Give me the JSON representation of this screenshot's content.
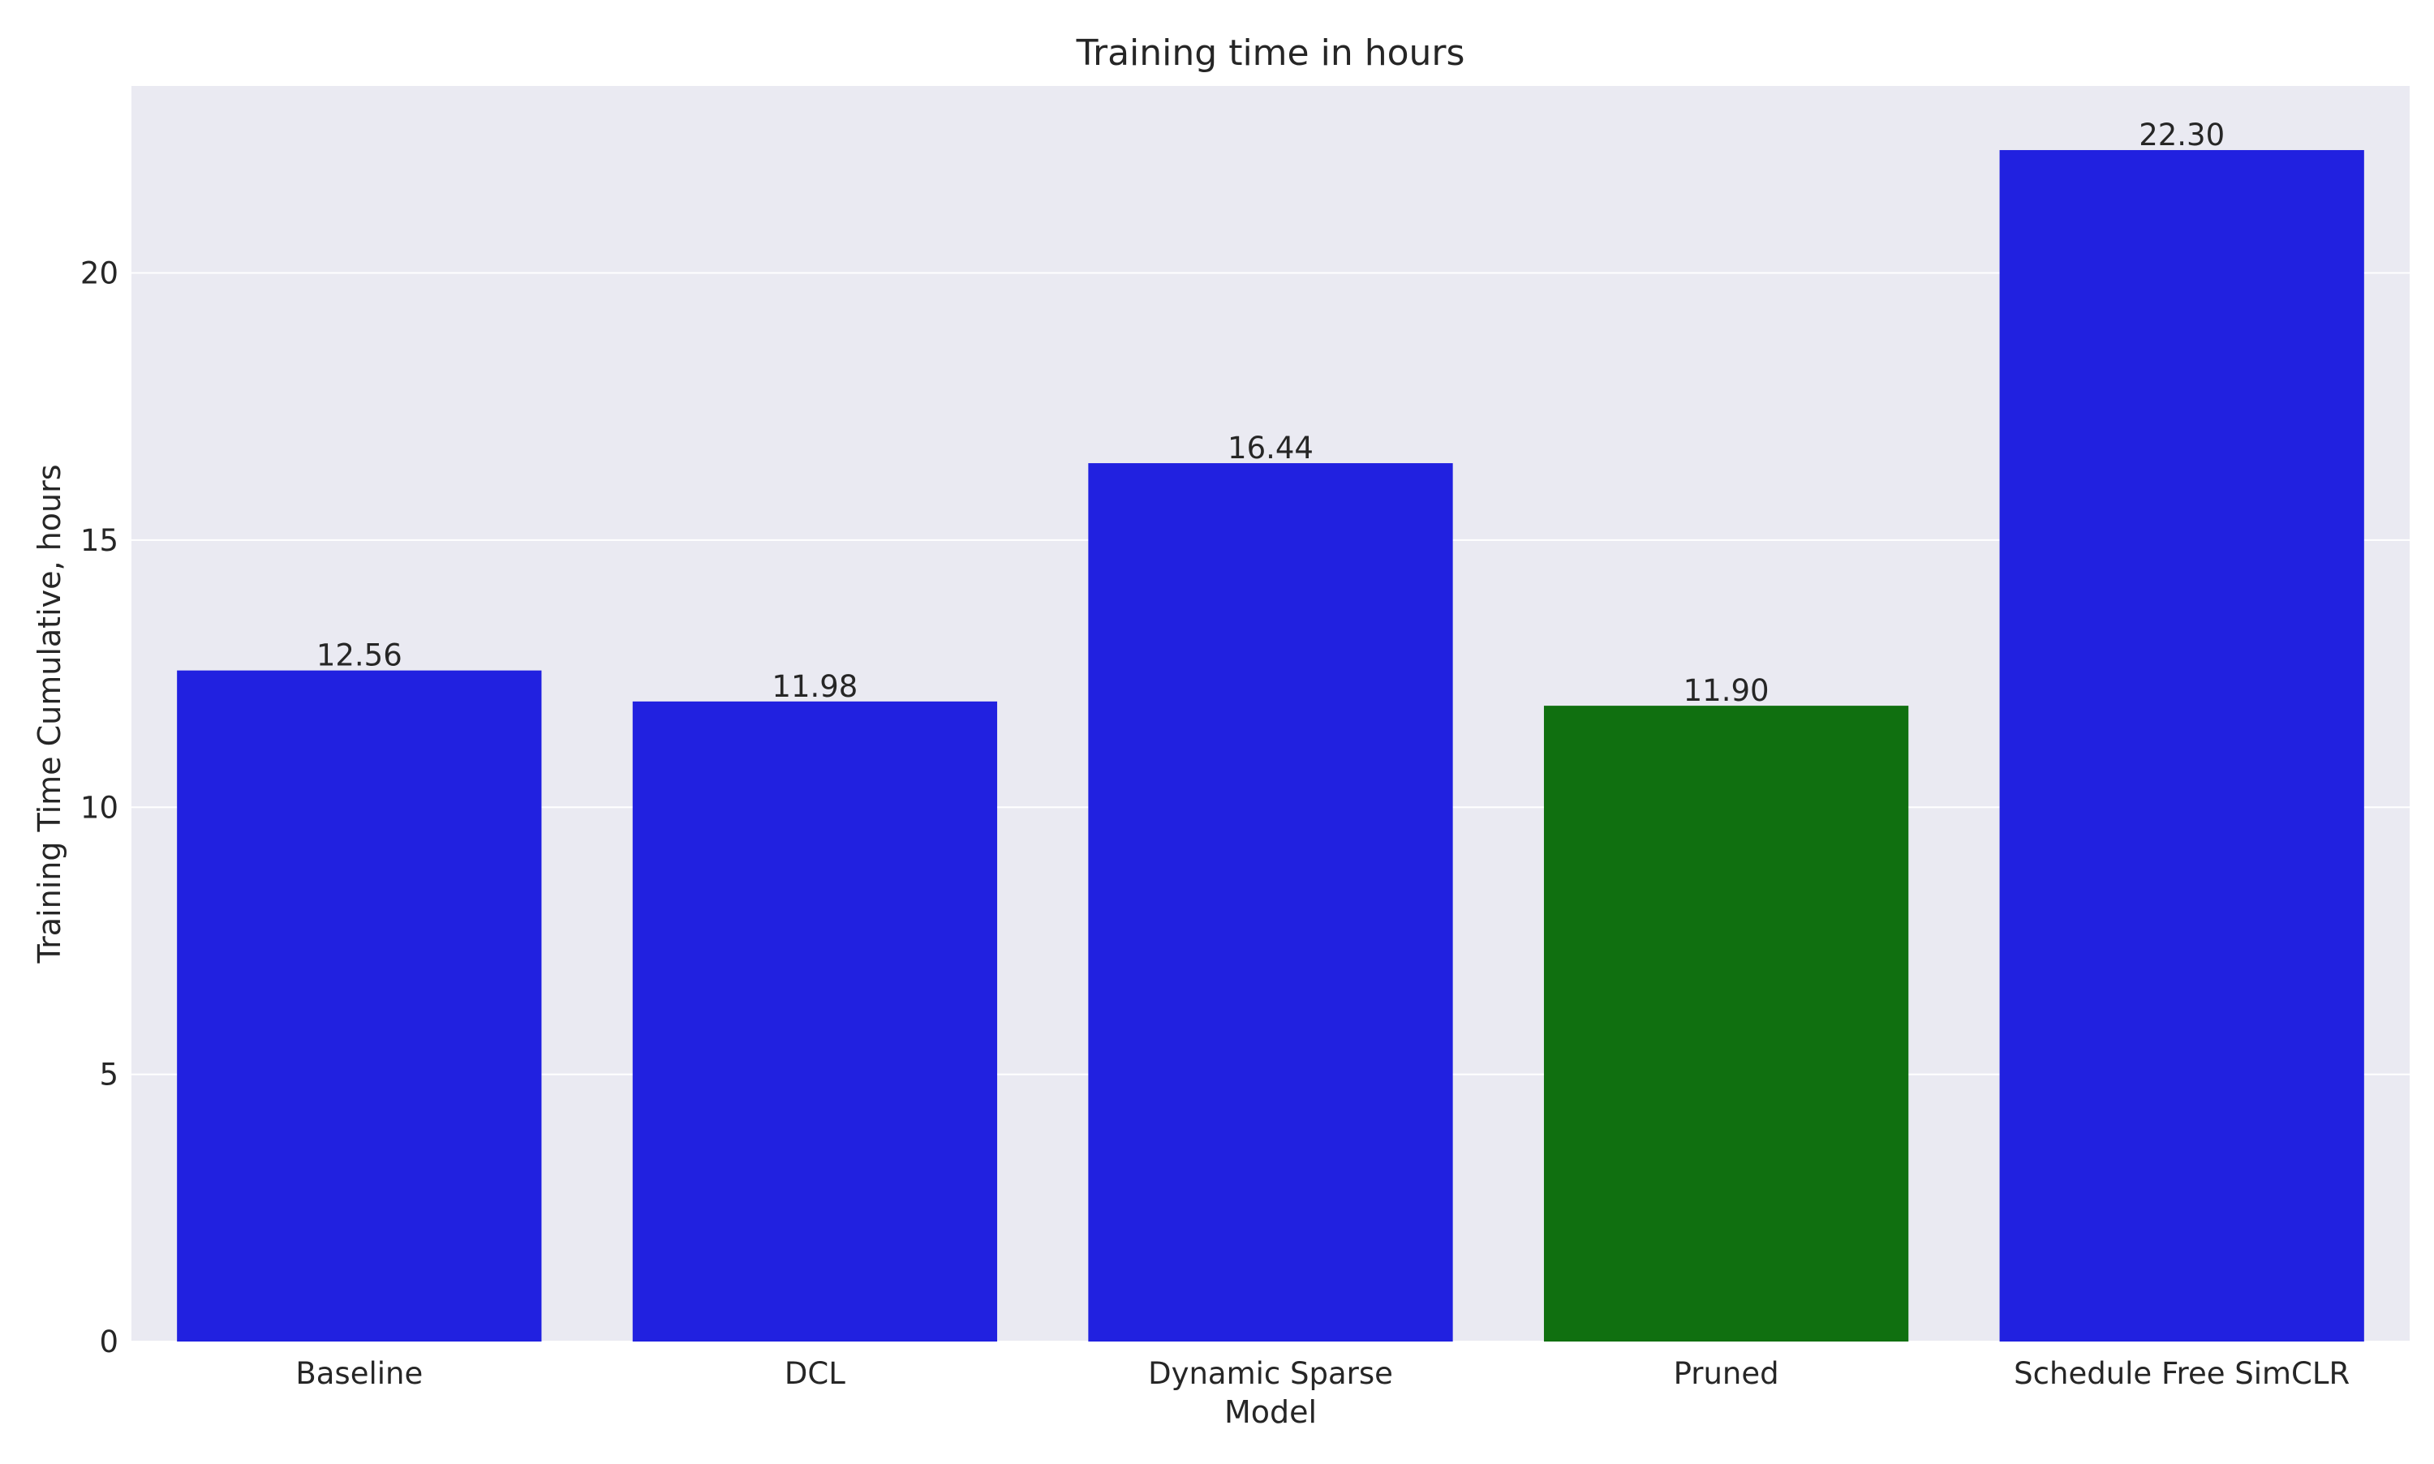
{
  "chart_data": {
    "type": "bar",
    "title": "Training time in hours",
    "xlabel": "Model",
    "ylabel": "Training Time Cumulative, hours",
    "categories": [
      "Baseline",
      "DCL",
      "Dynamic Sparse",
      "Pruned",
      "Schedule Free SimCLR"
    ],
    "values": [
      12.56,
      11.98,
      16.44,
      11.9,
      22.3
    ],
    "data_labels": [
      "12.56",
      "11.98",
      "16.44",
      "11.90",
      "22.30"
    ],
    "bar_colors": [
      "#2121e0",
      "#2121e0",
      "#2121e0",
      "#107010",
      "#2121e0"
    ],
    "ylim": [
      0,
      23.5
    ],
    "yticks": [
      0,
      5,
      10,
      15,
      20
    ],
    "grid": true,
    "legend": "none",
    "colors": {
      "plot_background": "#eaeaf2",
      "grid": "#ffffff",
      "text": "#262626"
    }
  }
}
